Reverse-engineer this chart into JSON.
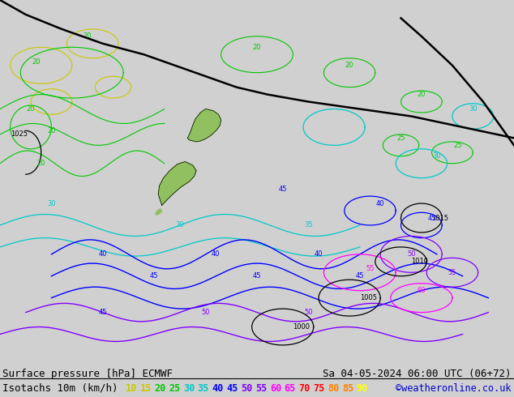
{
  "title_line1": "Surface pressure [hPa] ECMWF",
  "title_line1_right": "Sa 04-05-2024 06:00 UTC (06+72)",
  "title_line2": "Isotachs 10m (km/h)",
  "credit": "©weatheronline.co.uk",
  "legend_values": [
    10,
    15,
    20,
    25,
    30,
    35,
    40,
    45,
    50,
    55,
    60,
    65,
    70,
    75,
    80,
    85,
    90
  ],
  "legend_colors": [
    "#c8c800",
    "#c8c800",
    "#00c800",
    "#00c800",
    "#00c8c8",
    "#00c8c8",
    "#0000ff",
    "#0000ff",
    "#8000ff",
    "#8000ff",
    "#ff00ff",
    "#ff00ff",
    "#ff0000",
    "#ff0000",
    "#ff8000",
    "#ff8000",
    "#ffff00"
  ],
  "bg_color": "#d0d0d0",
  "map_bg": "#e0e0e0",
  "ocean_color": "#c8d8e8",
  "land_color": "#90c060",
  "font_size_bottom": 9,
  "fig_width": 6.34,
  "fig_height": 4.9
}
